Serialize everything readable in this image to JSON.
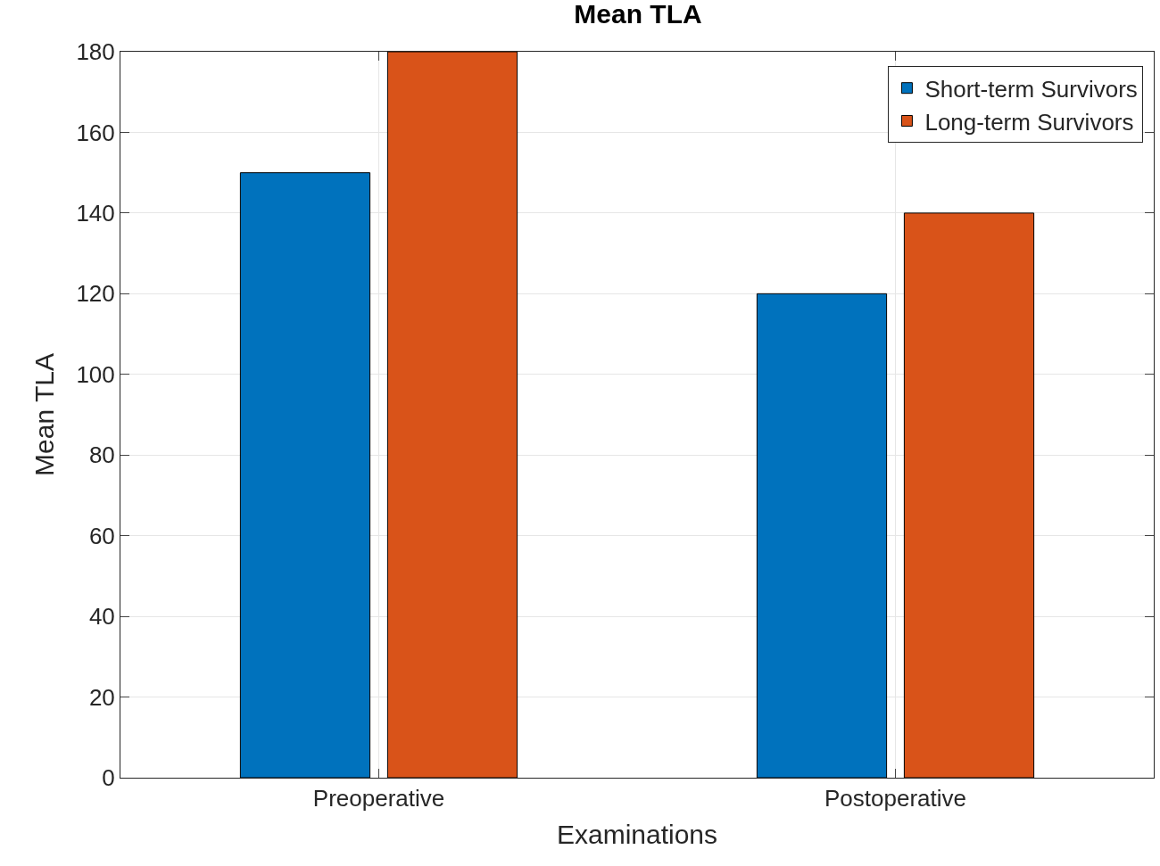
{
  "chart_data": {
    "type": "bar",
    "title": "Mean TLA",
    "xlabel": "Examinations",
    "ylabel": "Mean TLA",
    "categories": [
      "Preoperative",
      "Postoperative"
    ],
    "series": [
      {
        "name": "Short-term Survivors",
        "color": "#0072bd",
        "values": [
          150,
          120
        ]
      },
      {
        "name": "Long-term Survivors",
        "color": "#d95319",
        "values": [
          180,
          140
        ]
      }
    ],
    "ylim": [
      0,
      180
    ],
    "yticks": [
      0,
      20,
      40,
      60,
      80,
      100,
      120,
      140,
      160,
      180
    ],
    "grid": true,
    "legend": "top right"
  }
}
